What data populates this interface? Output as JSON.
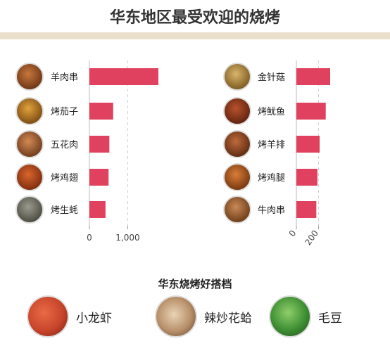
{
  "page": {
    "title": "华东地区最受欢迎的烧烤"
  },
  "chart_data": [
    {
      "type": "bar",
      "orientation": "horizontal",
      "categories": [
        "羊肉串",
        "烤茄子",
        "五花肉",
        "烤鸡翅",
        "烤生蚝"
      ],
      "values": [
        1800,
        620,
        520,
        500,
        420
      ],
      "xlim": [
        0,
        1900
      ],
      "xticks": [
        0,
        1000
      ],
      "xtick_labels": [
        "0",
        "1,000"
      ],
      "grid": "vertical-dashed",
      "bar_color": "#e0415f"
    },
    {
      "type": "bar",
      "orientation": "horizontal",
      "categories": [
        "金针菇",
        "烤鱿鱼",
        "烤羊排",
        "烤鸡腿",
        "牛肉串"
      ],
      "values": [
        305,
        265,
        210,
        190,
        180
      ],
      "xlim": [
        0,
        350
      ],
      "xticks": [
        0,
        200
      ],
      "xtick_labels": [
        "0",
        "200"
      ],
      "grid": "vertical-dashed",
      "bar_color": "#e0415f"
    }
  ],
  "pairings": {
    "title": "华东烧烤好搭档",
    "items": [
      {
        "label": "小龙虾",
        "icon": "crayfish-photo",
        "color": "#c8452c"
      },
      {
        "label": "辣炒花蛤",
        "icon": "clams-photo",
        "color": "#b8906a"
      },
      {
        "label": "毛豆",
        "icon": "edamame-photo",
        "color": "#3f8f34"
      }
    ]
  },
  "colors": {
    "bar": "#e0415f",
    "title_rule": "#eadfcb"
  }
}
